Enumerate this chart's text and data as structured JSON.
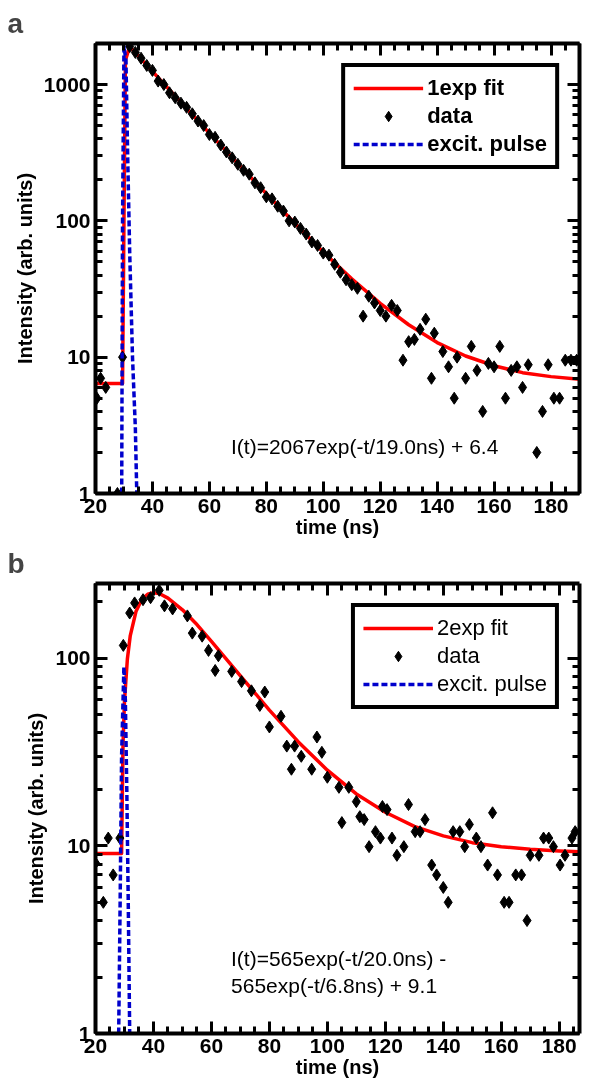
{
  "chart_data": [
    {
      "type": "scatter",
      "title": "a",
      "xlabel": "time (ns)",
      "ylabel": "Intensity (arb. units)",
      "log": "y",
      "xlim": [
        20,
        190
      ],
      "ylim": [
        1,
        2000
      ],
      "xticks": [
        20,
        40,
        60,
        80,
        100,
        120,
        140,
        160,
        180
      ],
      "yticks": [
        1,
        10,
        100,
        1000
      ],
      "legend": "top right",
      "annotations": [
        "I(t)=2067exp(-t/19.0ns) + 6.4"
      ],
      "series": [
        {
          "name": "1exp fit",
          "type": "line",
          "color": "#ff0000",
          "line_style": "solid",
          "x": [
            20,
            29.5,
            30.5,
            32,
            35,
            40,
            50,
            60,
            70,
            80,
            90,
            100,
            110,
            120,
            130,
            140,
            150,
            160,
            170,
            180,
            190
          ],
          "values": [
            6.4,
            6.4,
            1500,
            1900,
            1624,
            1249,
            741,
            440,
            263,
            158,
            96,
            59,
            37.6,
            24.8,
            17.3,
            12.8,
            10.2,
            8.65,
            7.7,
            7.2,
            6.9
          ]
        },
        {
          "name": "data",
          "marker": "diamond",
          "color": "#000000",
          "x": [
            20.5,
            21.8,
            23.6,
            27.7,
            29.5,
            32,
            34,
            36,
            38,
            40,
            42,
            44,
            46,
            48,
            50,
            52,
            54,
            56,
            58,
            60,
            62,
            64,
            66,
            68,
            70,
            72,
            74,
            76,
            78,
            80,
            82,
            84,
            86,
            88,
            90,
            92,
            94,
            96,
            98,
            100,
            102,
            104,
            106,
            108,
            110,
            112,
            114,
            116,
            118,
            120,
            122,
            124,
            126,
            128,
            130,
            132,
            134,
            136,
            138,
            139,
            142,
            144,
            146,
            147,
            150,
            152,
            154,
            156,
            158,
            160,
            162,
            164,
            166,
            168,
            170,
            172,
            175,
            177,
            179,
            181,
            183,
            185,
            187,
            189
          ],
          "values": [
            5,
            7,
            6,
            1,
            10,
            1900,
            1720,
            1560,
            1380,
            1270,
            1060,
            1000,
            870,
            800,
            730,
            680,
            610,
            540,
            500,
            430,
            410,
            360,
            320,
            290,
            260,
            235,
            220,
            190,
            175,
            150,
            145,
            128,
            118,
            100,
            98,
            88,
            80,
            70,
            66,
            58,
            56,
            48,
            42,
            37,
            34,
            32,
            20,
            28,
            25,
            22,
            20,
            24,
            22,
            9.5,
            13,
            13.5,
            16,
            19,
            7,
            15,
            11,
            8.5,
            5,
            10,
            7,
            12,
            8,
            4,
            9,
            8.5,
            12,
            5,
            8,
            8.5,
            6,
            8.8,
            2,
            4,
            8.8,
            5,
            5,
            9.5,
            9.5,
            9.5
          ]
        },
        {
          "name": "excit. pulse",
          "type": "line",
          "color": "#0000cc",
          "line_style": "dashed",
          "x": [
            29.2,
            29.5,
            30,
            30.7,
            31.3,
            32,
            33,
            34,
            34.5
          ],
          "values": [
            1,
            100,
            1900,
            1500,
            300,
            60,
            10,
            3,
            1
          ]
        }
      ]
    },
    {
      "type": "scatter",
      "title": "b",
      "xlabel": "time (ns)",
      "ylabel": "Intensity (arb. units)",
      "log": "y",
      "xlim": [
        20,
        187
      ],
      "ylim": [
        1,
        250
      ],
      "xticks": [
        20,
        40,
        60,
        80,
        100,
        120,
        140,
        160,
        180
      ],
      "yticks": [
        1,
        10,
        100
      ],
      "legend": "top right",
      "annotations": [
        "I(t)=565exp(-t/20.0ns) -\n565exp(-t/6.8ns) + 9.1"
      ],
      "series": [
        {
          "name": "2exp fit",
          "type": "line",
          "color": "#ff0000",
          "line_style": "solid",
          "x": [
            20,
            29,
            29.5,
            30,
            31,
            32,
            34,
            36,
            38,
            40,
            42,
            45,
            50,
            55,
            60,
            70,
            80,
            90,
            100,
            110,
            120,
            130,
            140,
            150,
            160,
            170,
            180,
            187
          ],
          "values": [
            9.1,
            9.1,
            35,
            59,
            99,
            132,
            178,
            206,
            219,
            223,
            221,
            209,
            181,
            151,
            123,
            80.5,
            52.9,
            35.8,
            25.3,
            18.9,
            15.1,
            12.7,
            11.3,
            10.4,
            9.9,
            9.6,
            9.4,
            9.3
          ]
        },
        {
          "name": "data",
          "marker": "diamond",
          "color": "#000000",
          "x": [
            20,
            22.7,
            24.4,
            26.1,
            28.4,
            29.6,
            31.8,
            33.5,
            36.4,
            39,
            42,
            43.8,
            46.6,
            51.7,
            53.4,
            56.8,
            59,
            62.4,
            61.3,
            67,
            70.4,
            73.8,
            78.4,
            76.7,
            80,
            84,
            86,
            87.6,
            88.7,
            91,
            94.6,
            96.4,
            98.1,
            100,
            104,
            105,
            107.4,
            110,
            111.2,
            112.7,
            114.4,
            116.6,
            118.3,
            119,
            120.6,
            122.3,
            124,
            126.4,
            128,
            130.3,
            132,
            133.7,
            136,
            137.7,
            140,
            141.7,
            143.4,
            145.7,
            147.4,
            149,
            151.4,
            153,
            155.3,
            157,
            158.7,
            161,
            162.7,
            165,
            167,
            168.9,
            170,
            173,
            174.6,
            176.4,
            178,
            180.3,
            182,
            184.4,
            185.5
          ],
          "values": [
            8.1,
            5,
            11,
            7,
            11,
            117,
            174,
            197,
            205,
            210,
            230,
            190,
            183,
            168,
            136,
            131,
            110,
            103,
            86,
            85,
            75,
            67,
            66,
            56,
            43,
            49,
            34,
            25.6,
            34,
            30,
            25.6,
            38,
            31.5,
            23.2,
            20.5,
            13.3,
            20.5,
            17.2,
            14.3,
            13.8,
            9.9,
            11.9,
            11,
            16.2,
            15.6,
            11,
            8.9,
            9.9,
            16.6,
            11.9,
            11.9,
            13.8,
            7.9,
            7,
            6,
            5,
            11.9,
            11.9,
            9.9,
            13,
            11,
            9.9,
            7.9,
            15,
            7,
            5,
            5,
            7,
            7,
            4,
            8.9,
            8.9,
            11,
            11,
            9.9,
            7.9,
            8.9,
            11,
            11.9
          ]
        },
        {
          "name": "excit. pulse",
          "type": "line",
          "color": "#0000cc",
          "line_style": "dashed",
          "x": [
            28,
            28.5,
            29,
            29.8,
            30.3,
            30.8,
            31.3,
            31.8
          ],
          "values": [
            1,
            5,
            30,
            90,
            60,
            20,
            5,
            1
          ]
        }
      ]
    }
  ]
}
